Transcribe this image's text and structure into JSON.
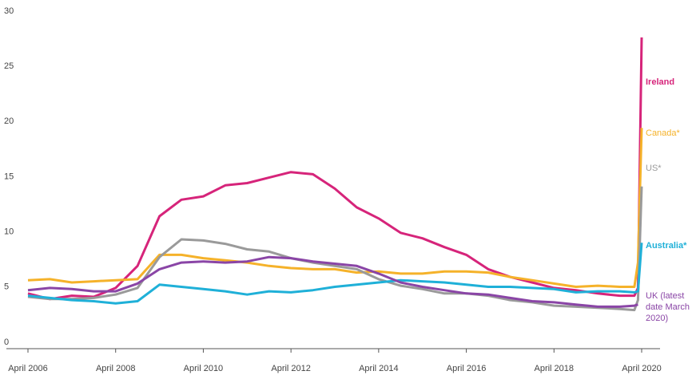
{
  "chart_data": {
    "type": "line",
    "x": [
      "2006-04",
      "2006-10",
      "2007-04",
      "2007-10",
      "2008-04",
      "2008-10",
      "2009-04",
      "2009-10",
      "2010-04",
      "2010-10",
      "2011-04",
      "2011-10",
      "2012-04",
      "2012-10",
      "2013-04",
      "2013-10",
      "2014-04",
      "2014-10",
      "2015-04",
      "2015-10",
      "2016-04",
      "2016-10",
      "2017-04",
      "2017-10",
      "2018-04",
      "2018-10",
      "2019-04",
      "2019-10",
      "2020-02",
      "2020-03",
      "2020-04"
    ],
    "series": [
      {
        "name": "Ireland",
        "color": "#d6247a",
        "values": [
          5,
          4.5,
          4.8,
          4.7,
          5.5,
          7.5,
          12,
          13.5,
          13.8,
          14.8,
          15,
          15.5,
          16,
          15.8,
          14.5,
          12.8,
          11.8,
          10.5,
          10,
          9.2,
          8.5,
          7.2,
          6.5,
          6,
          5.5,
          5.3,
          5,
          4.8,
          4.8,
          5.5,
          28.2
        ]
      },
      {
        "name": "Canada*",
        "color": "#f5b22a",
        "values": [
          6.2,
          6.3,
          6,
          6.1,
          6.2,
          6.3,
          8.5,
          8.5,
          8.2,
          8,
          7.8,
          7.5,
          7.3,
          7.2,
          7.2,
          6.9,
          7,
          6.8,
          6.8,
          7,
          7,
          6.9,
          6.5,
          6.2,
          5.9,
          5.6,
          5.7,
          5.6,
          5.6,
          7.8,
          20
        ]
      },
      {
        "name": "US*",
        "color": "#9a9a9a",
        "values": [
          4.7,
          4.5,
          4.5,
          4.6,
          4.9,
          5.5,
          8.3,
          9.9,
          9.8,
          9.5,
          9,
          8.8,
          8.2,
          7.8,
          7.5,
          7.2,
          6.3,
          5.7,
          5.4,
          5,
          5,
          4.8,
          4.4,
          4.2,
          3.9,
          3.8,
          3.7,
          3.6,
          3.5,
          4.4,
          14.7
        ]
      },
      {
        "name": "Australia*",
        "color": "#1fb0d8",
        "values": [
          4.8,
          4.6,
          4.4,
          4.3,
          4.1,
          4.3,
          5.8,
          5.6,
          5.4,
          5.2,
          4.9,
          5.2,
          5.1,
          5.3,
          5.6,
          5.8,
          6,
          6.2,
          6.1,
          6,
          5.8,
          5.6,
          5.6,
          5.5,
          5.4,
          5.1,
          5.2,
          5.2,
          5.1,
          5.2,
          9.6
        ]
      },
      {
        "name": "UK (latest date March 2020)",
        "color": "#8a45a6",
        "values": [
          5.3,
          5.5,
          5.4,
          5.2,
          5.2,
          5.9,
          7.2,
          7.8,
          7.9,
          7.8,
          7.9,
          8.3,
          8.2,
          7.9,
          7.7,
          7.5,
          6.8,
          6,
          5.6,
          5.3,
          5,
          4.9,
          4.6,
          4.3,
          4.2,
          4.0,
          3.8,
          3.8,
          3.9,
          4.0,
          null
        ]
      }
    ],
    "xlim": [
      "2006-04",
      "2020-04"
    ],
    "xticks": [
      {
        "value": "2006-04",
        "label": "April 2006"
      },
      {
        "value": "2008-04",
        "label": "April 2008"
      },
      {
        "value": "2010-04",
        "label": "April 2010"
      },
      {
        "value": "2012-04",
        "label": "April 2012"
      },
      {
        "value": "2014-04",
        "label": "April 2014"
      },
      {
        "value": "2016-04",
        "label": "April 2016"
      },
      {
        "value": "2018-04",
        "label": "April 2018"
      },
      {
        "value": "2020-04",
        "label": "April 2020"
      }
    ],
    "ylim": [
      0,
      30
    ],
    "yticks": [
      0,
      5,
      10,
      15,
      20,
      25,
      30
    ],
    "grid": false
  }
}
